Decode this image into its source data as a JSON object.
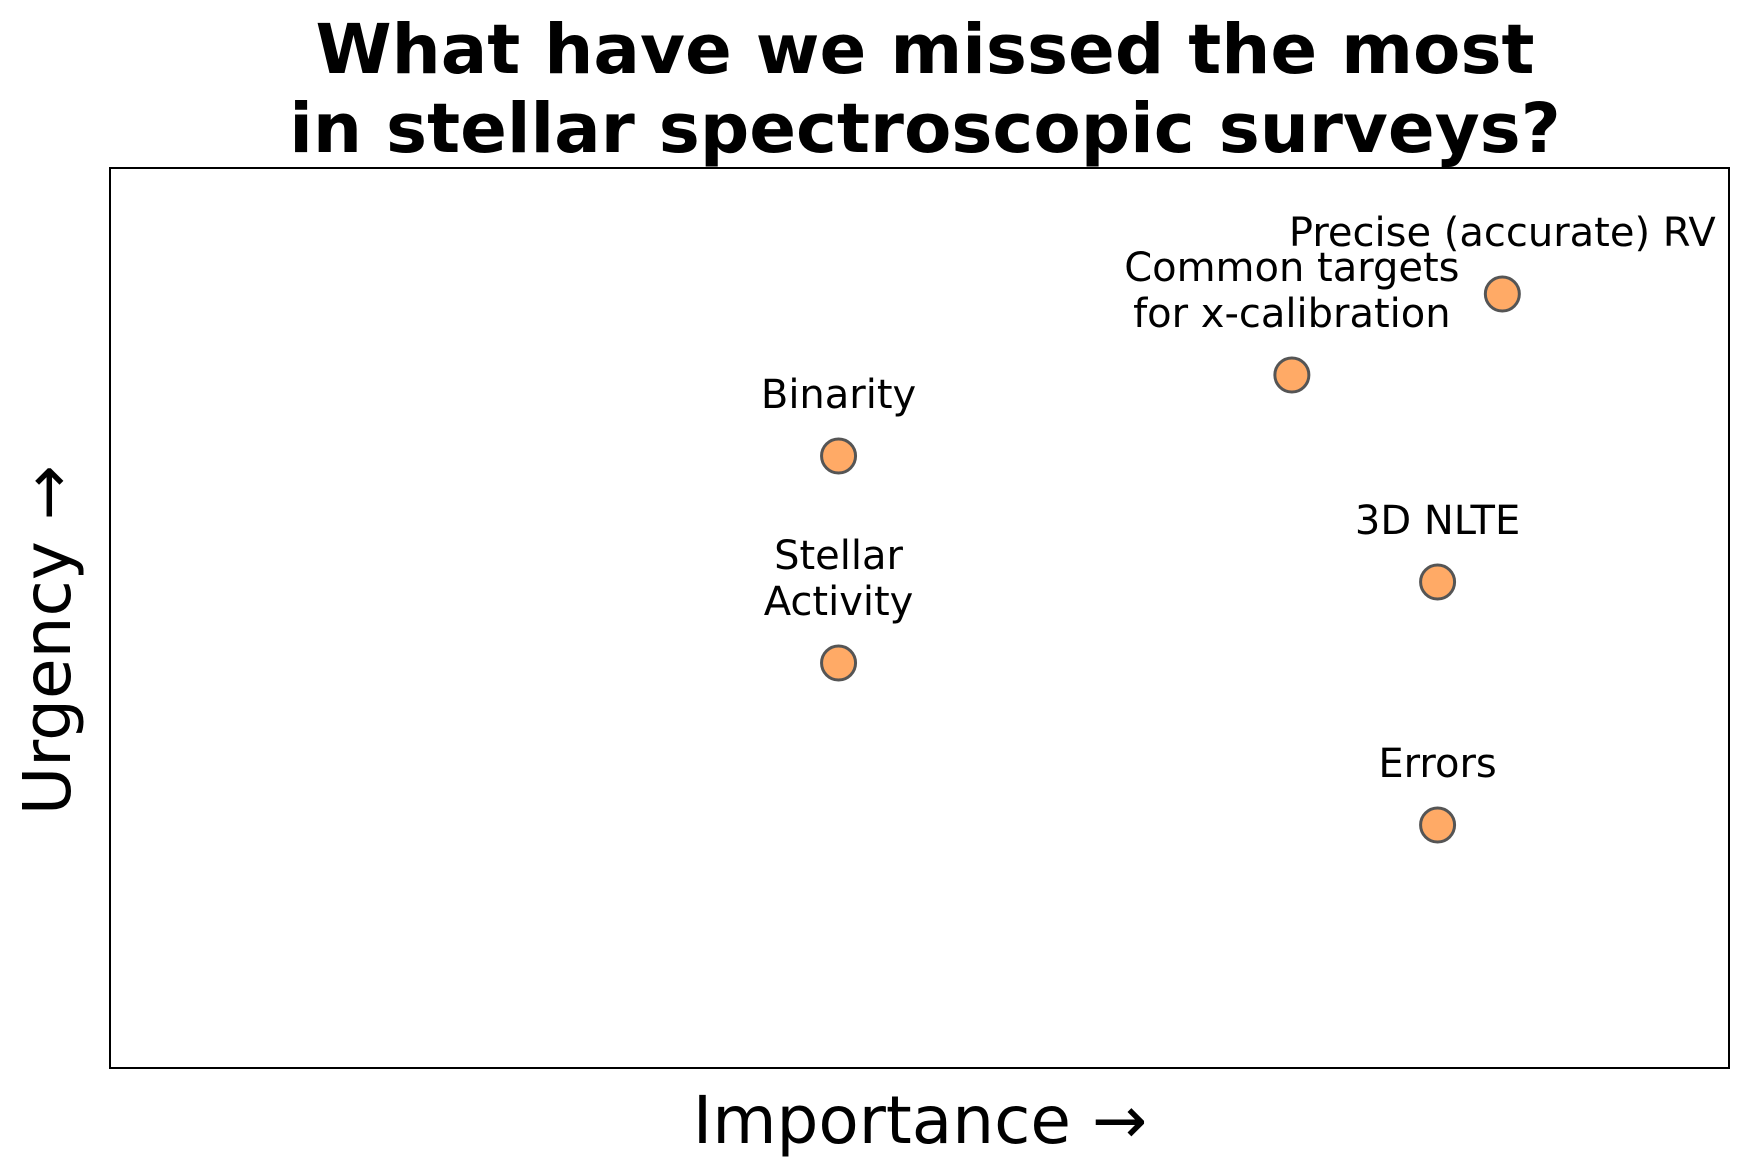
{
  "chart_data": {
    "type": "scatter",
    "title_lines": [
      "What have we missed the most",
      "in stellar spectroscopic surveys?"
    ],
    "xlabel": "Importance →",
    "ylabel": "Urgency →",
    "xlim": [
      0,
      10
    ],
    "ylim": [
      0,
      10
    ],
    "grid": false,
    "ticks_visible": false,
    "marker_fill": "#ffaa66",
    "marker_edge": "#555555",
    "points": [
      {
        "label_lines": [
          "Precise (accurate) RV"
        ],
        "x": 8.6,
        "y": 8.6
      },
      {
        "label_lines": [
          "Common targets",
          "for x-calibration"
        ],
        "x": 7.3,
        "y": 7.7
      },
      {
        "label_lines": [
          "Binarity"
        ],
        "x": 4.5,
        "y": 6.8
      },
      {
        "label_lines": [
          "3D NLTE"
        ],
        "x": 8.2,
        "y": 5.4
      },
      {
        "label_lines": [
          "Stellar",
          "Activity"
        ],
        "x": 4.5,
        "y": 4.5
      },
      {
        "label_lines": [
          "Errors"
        ],
        "x": 8.2,
        "y": 2.7
      }
    ]
  }
}
